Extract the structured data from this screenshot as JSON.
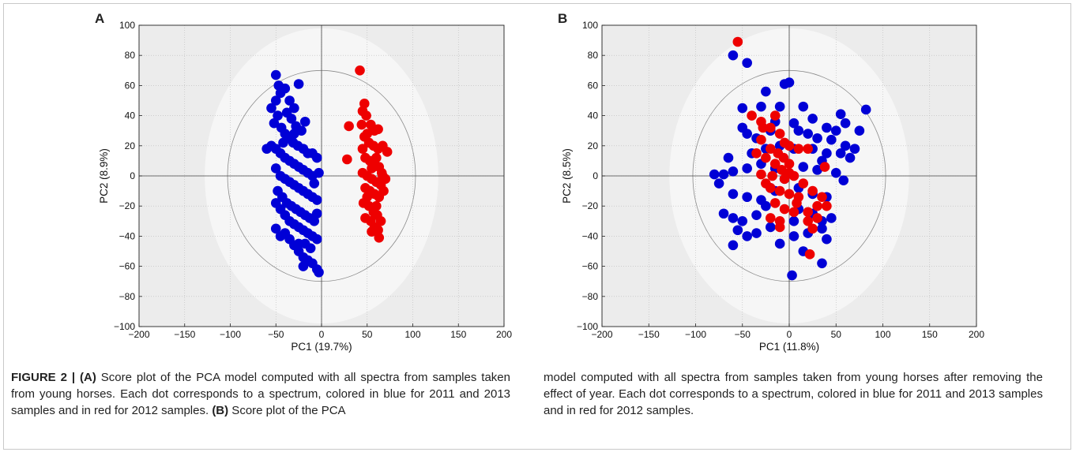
{
  "figure": {
    "caption_label": "FIGURE 2 | ",
    "caption_left": {
      "a_tag": "(A)",
      "a_text": " Score plot of the PCA model computed with all spectra from samples taken from young horses. Each dot corresponds to a spectrum, colored in blue for 2011 and 2013 samples and in red for 2012 samples. ",
      "b_tag": "(B)",
      "b_text": " Score plot of the PCA"
    },
    "caption_right": "model computed with all spectra from samples taken from young horses after removing the effect of year. Each dot corresponds to a spectrum, colored in blue for 2011 and 2013 samples and in red for 2012 samples."
  },
  "colors": {
    "blue": "#0000d6",
    "red": "#ee0000",
    "plot_bg": "#ececec",
    "ellipse_bg": "#f6f6f6"
  },
  "chart_data": [
    {
      "panel": "A",
      "type": "scatter",
      "xlabel": "PC1 (19.7%)",
      "ylabel": "PC2 (8.9%)",
      "xlim": [
        -200,
        200
      ],
      "ylim": [
        -100,
        100
      ],
      "xticks": [
        -200,
        -150,
        -100,
        -50,
        0,
        50,
        100,
        150,
        200
      ],
      "yticks": [
        -100,
        -80,
        -60,
        -40,
        -20,
        0,
        20,
        40,
        60,
        80,
        100
      ],
      "grid": true,
      "series": [
        {
          "color": "blue",
          "points": [
            [
              -50,
              67
            ],
            [
              -47,
              60
            ],
            [
              -40,
              58
            ],
            [
              -35,
              50
            ],
            [
              -30,
              45
            ],
            [
              -25,
              61
            ],
            [
              -45,
              55
            ],
            [
              -50,
              50
            ],
            [
              -55,
              45
            ],
            [
              -38,
              42
            ],
            [
              -33,
              38
            ],
            [
              -28,
              33
            ],
            [
              -22,
              30
            ],
            [
              -18,
              36
            ],
            [
              -48,
              40
            ],
            [
              -52,
              35
            ],
            [
              -44,
              32
            ],
            [
              -40,
              28
            ],
            [
              -36,
              25
            ],
            [
              -31,
              22
            ],
            [
              -26,
              20
            ],
            [
              -20,
              18
            ],
            [
              -15,
              15
            ],
            [
              -10,
              15
            ],
            [
              -5,
              12
            ],
            [
              -60,
              18
            ],
            [
              -55,
              20
            ],
            [
              -50,
              18
            ],
            [
              -45,
              15
            ],
            [
              -40,
              12
            ],
            [
              -35,
              10
            ],
            [
              -30,
              8
            ],
            [
              -25,
              6
            ],
            [
              -20,
              4
            ],
            [
              -15,
              2
            ],
            [
              -10,
              0
            ],
            [
              -50,
              5
            ],
            [
              -45,
              0
            ],
            [
              -40,
              -2
            ],
            [
              -35,
              -4
            ],
            [
              -30,
              -6
            ],
            [
              -25,
              -8
            ],
            [
              -20,
              -10
            ],
            [
              -15,
              -12
            ],
            [
              -10,
              -14
            ],
            [
              -5,
              -16
            ],
            [
              -48,
              -10
            ],
            [
              -43,
              -14
            ],
            [
              -38,
              -18
            ],
            [
              -33,
              -20
            ],
            [
              -28,
              -22
            ],
            [
              -23,
              -24
            ],
            [
              -18,
              -26
            ],
            [
              -13,
              -28
            ],
            [
              -8,
              -30
            ],
            [
              -45,
              -22
            ],
            [
              -40,
              -26
            ],
            [
              -35,
              -30
            ],
            [
              -30,
              -32
            ],
            [
              -25,
              -34
            ],
            [
              -20,
              -36
            ],
            [
              -15,
              -38
            ],
            [
              -10,
              -40
            ],
            [
              -5,
              -42
            ],
            [
              -40,
              -38
            ],
            [
              -35,
              -42
            ],
            [
              -30,
              -46
            ],
            [
              -25,
              -50
            ],
            [
              -20,
              -54
            ],
            [
              -15,
              -56
            ],
            [
              -10,
              -58
            ],
            [
              -5,
              -62
            ],
            [
              -20,
              -60
            ],
            [
              -25,
              -45
            ],
            [
              -45,
              -40
            ],
            [
              -50,
              -35
            ],
            [
              -50,
              -18
            ],
            [
              -5,
              -25
            ],
            [
              -8,
              -5
            ],
            [
              -3,
              2
            ],
            [
              -42,
              22
            ],
            [
              -30,
              28
            ],
            [
              -12,
              -48
            ],
            [
              -18,
              -45
            ],
            [
              -3,
              -64
            ]
          ]
        },
        {
          "color": "red",
          "points": [
            [
              42,
              70
            ],
            [
              47,
              48
            ],
            [
              45,
              43
            ],
            [
              30,
              33
            ],
            [
              44,
              34
            ],
            [
              50,
              28
            ],
            [
              54,
              34
            ],
            [
              58,
              30
            ],
            [
              62,
              31
            ],
            [
              47,
              26
            ],
            [
              52,
              22
            ],
            [
              57,
              20
            ],
            [
              62,
              18
            ],
            [
              67,
              20
            ],
            [
              72,
              16
            ],
            [
              48,
              12
            ],
            [
              53,
              10
            ],
            [
              58,
              8
            ],
            [
              63,
              6
            ],
            [
              66,
              2
            ],
            [
              28,
              11
            ],
            [
              45,
              2
            ],
            [
              50,
              0
            ],
            [
              55,
              -2
            ],
            [
              60,
              -4
            ],
            [
              65,
              -6
            ],
            [
              70,
              -2
            ],
            [
              48,
              -8
            ],
            [
              53,
              -10
            ],
            [
              58,
              -12
            ],
            [
              63,
              -14
            ],
            [
              46,
              -18
            ],
            [
              52,
              -20
            ],
            [
              57,
              -24
            ],
            [
              61,
              -26
            ],
            [
              48,
              -28
            ],
            [
              54,
              -30
            ],
            [
              58,
              -34
            ],
            [
              62,
              -36
            ],
            [
              63,
              -41
            ],
            [
              55,
              -37
            ],
            [
              65,
              -30
            ],
            [
              68,
              -10
            ],
            [
              60,
              12
            ],
            [
              45,
              18
            ],
            [
              60,
              -20
            ],
            [
              50,
              -14
            ],
            [
              67,
              0
            ],
            [
              55,
              5
            ],
            [
              49,
              40
            ]
          ]
        }
      ]
    },
    {
      "panel": "B",
      "type": "scatter",
      "xlabel": "PC1 (11.8%)",
      "ylabel": "PC2 (8.5%)",
      "xlim": [
        -200,
        200
      ],
      "ylim": [
        -100,
        100
      ],
      "xticks": [
        -200,
        -150,
        -100,
        -50,
        0,
        50,
        100,
        150,
        200
      ],
      "yticks": [
        -100,
        -80,
        -60,
        -40,
        -20,
        0,
        20,
        40,
        60,
        80,
        100
      ],
      "grid": true,
      "series": [
        {
          "color": "blue",
          "points": [
            [
              -60,
              80
            ],
            [
              -45,
              75
            ],
            [
              -25,
              56
            ],
            [
              -5,
              61
            ],
            [
              0,
              62
            ],
            [
              -10,
              46
            ],
            [
              -30,
              46
            ],
            [
              -50,
              45
            ],
            [
              15,
              46
            ],
            [
              55,
              41
            ],
            [
              82,
              44
            ],
            [
              75,
              30
            ],
            [
              -50,
              32
            ],
            [
              -45,
              28
            ],
            [
              -35,
              25
            ],
            [
              -20,
              30
            ],
            [
              -15,
              36
            ],
            [
              5,
              35
            ],
            [
              25,
              38
            ],
            [
              40,
              32
            ],
            [
              10,
              30
            ],
            [
              20,
              28
            ],
            [
              30,
              25
            ],
            [
              45,
              24
            ],
            [
              60,
              20
            ],
            [
              70,
              18
            ],
            [
              -40,
              15
            ],
            [
              -25,
              18
            ],
            [
              -10,
              20
            ],
            [
              5,
              18
            ],
            [
              25,
              18
            ],
            [
              40,
              15
            ],
            [
              55,
              15
            ],
            [
              65,
              12
            ],
            [
              -65,
              12
            ],
            [
              -80,
              1
            ],
            [
              -70,
              1
            ],
            [
              -60,
              3
            ],
            [
              -45,
              5
            ],
            [
              -30,
              8
            ],
            [
              -15,
              5
            ],
            [
              15,
              6
            ],
            [
              35,
              10
            ],
            [
              50,
              2
            ],
            [
              58,
              -3
            ],
            [
              -75,
              -5
            ],
            [
              -60,
              -12
            ],
            [
              -45,
              -14
            ],
            [
              -30,
              -16
            ],
            [
              -15,
              -10
            ],
            [
              10,
              -8
            ],
            [
              25,
              -12
            ],
            [
              40,
              -14
            ],
            [
              -70,
              -25
            ],
            [
              -60,
              -28
            ],
            [
              -50,
              -30
            ],
            [
              -35,
              -26
            ],
            [
              -25,
              -20
            ],
            [
              10,
              -22
            ],
            [
              25,
              -25
            ],
            [
              35,
              -30
            ],
            [
              45,
              -28
            ],
            [
              -55,
              -36
            ],
            [
              -45,
              -40
            ],
            [
              -35,
              -38
            ],
            [
              -20,
              -34
            ],
            [
              5,
              -30
            ],
            [
              20,
              -38
            ],
            [
              35,
              -35
            ],
            [
              40,
              -42
            ],
            [
              -60,
              -46
            ],
            [
              -10,
              -45
            ],
            [
              5,
              -40
            ],
            [
              15,
              -50
            ],
            [
              35,
              -58
            ],
            [
              3,
              -66
            ],
            [
              -20,
              -8
            ],
            [
              -5,
              -2
            ],
            [
              30,
              4
            ],
            [
              50,
              30
            ],
            [
              60,
              35
            ]
          ]
        },
        {
          "color": "red",
          "points": [
            [
              -55,
              89
            ],
            [
              -40,
              40
            ],
            [
              -30,
              36
            ],
            [
              -20,
              32
            ],
            [
              -15,
              40
            ],
            [
              -10,
              28
            ],
            [
              -5,
              22
            ],
            [
              0,
              20
            ],
            [
              -30,
              24
            ],
            [
              -20,
              18
            ],
            [
              -12,
              15
            ],
            [
              -6,
              12
            ],
            [
              0,
              8
            ],
            [
              -25,
              12
            ],
            [
              -15,
              8
            ],
            [
              -8,
              4
            ],
            [
              0,
              2
            ],
            [
              10,
              18
            ],
            [
              20,
              18
            ],
            [
              -30,
              1
            ],
            [
              -18,
              0
            ],
            [
              -5,
              -2
            ],
            [
              5,
              0
            ],
            [
              -20,
              -8
            ],
            [
              -10,
              -10
            ],
            [
              0,
              -12
            ],
            [
              10,
              -14
            ],
            [
              25,
              -10
            ],
            [
              35,
              -14
            ],
            [
              40,
              -20
            ],
            [
              -15,
              -18
            ],
            [
              -5,
              -22
            ],
            [
              5,
              -24
            ],
            [
              20,
              -24
            ],
            [
              30,
              -20
            ],
            [
              -20,
              -28
            ],
            [
              -10,
              -30
            ],
            [
              20,
              -30
            ],
            [
              25,
              -35
            ],
            [
              -10,
              -34
            ],
            [
              22,
              -52
            ],
            [
              38,
              6
            ],
            [
              -25,
              -5
            ],
            [
              15,
              -5
            ],
            [
              30,
              -28
            ],
            [
              -35,
              15
            ],
            [
              -28,
              32
            ],
            [
              8,
              -18
            ]
          ]
        }
      ]
    }
  ]
}
